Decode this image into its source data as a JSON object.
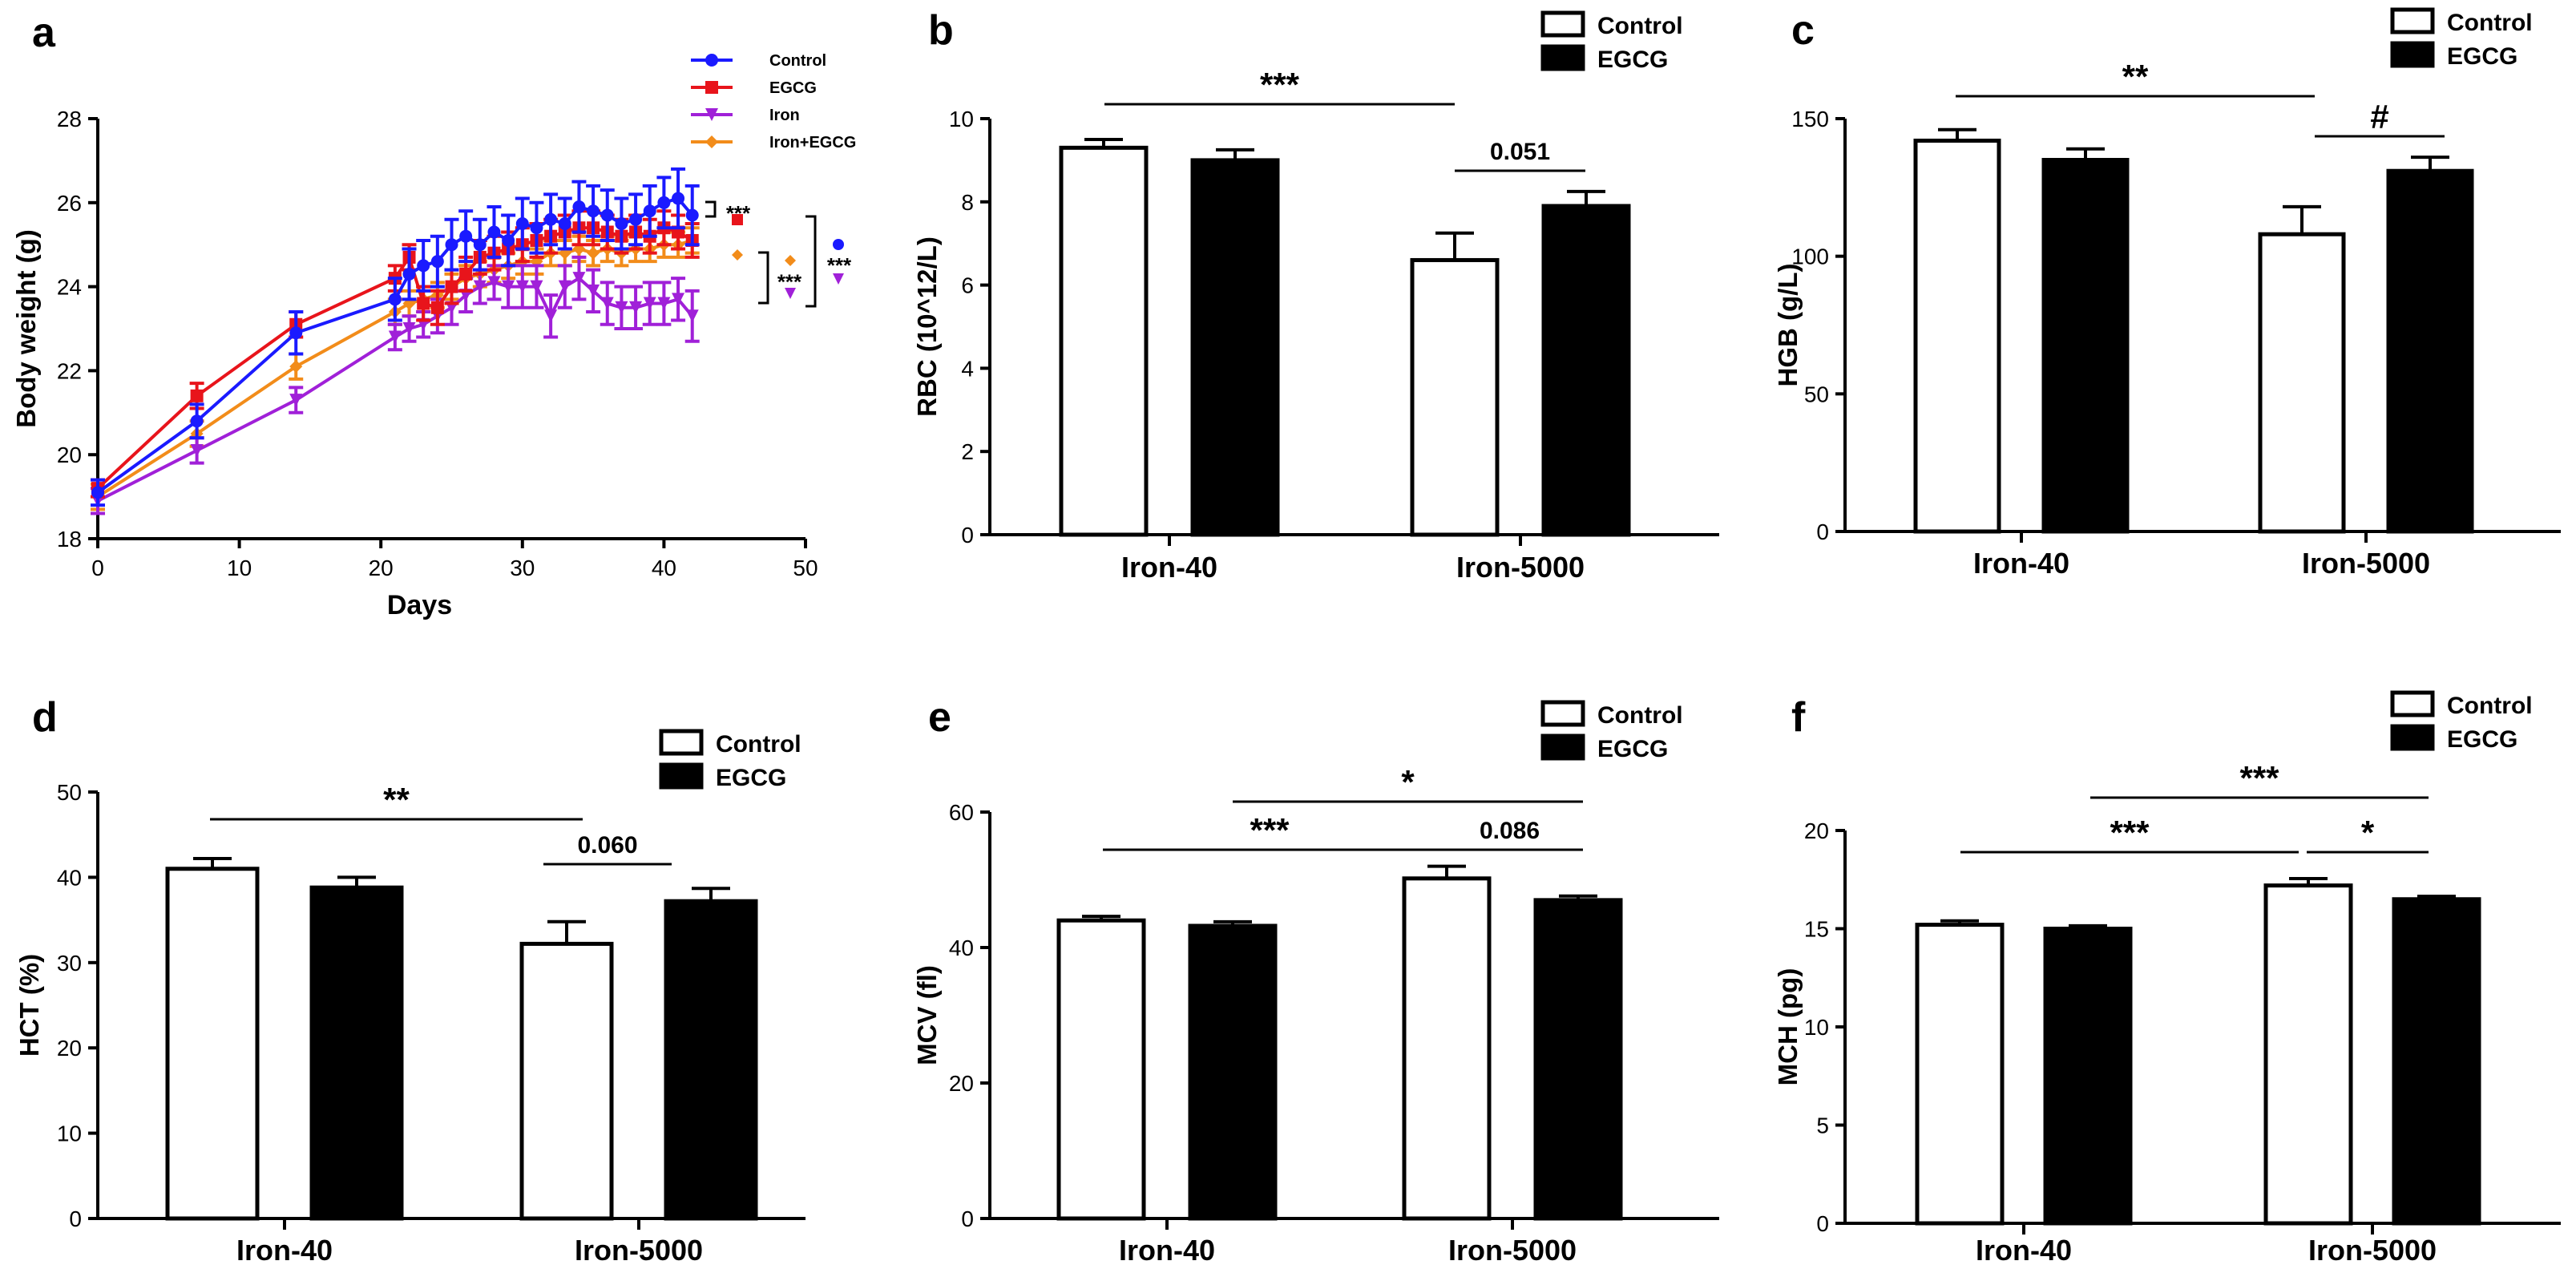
{
  "panels": {
    "a": {
      "letter": "a"
    },
    "b": {
      "letter": "b"
    },
    "c": {
      "letter": "c"
    },
    "d": {
      "letter": "d"
    },
    "e": {
      "letter": "e"
    },
    "f": {
      "letter": "f"
    }
  },
  "chart_data": [
    {
      "id": "a",
      "type": "line",
      "title": "",
      "xlabel": "Days",
      "ylabel": "Body weight (g)",
      "xlim": [
        0,
        50
      ],
      "ylim": [
        18,
        28
      ],
      "xticks": [
        "0",
        "10",
        "20",
        "30",
        "40",
        "50"
      ],
      "yticks": [
        "18",
        "20",
        "22",
        "24",
        "26",
        "28"
      ],
      "legend": [
        "Control",
        "EGCG",
        "Iron",
        "Iron+EGCG"
      ],
      "colors": [
        "#1a1aff",
        "#e8141b",
        "#a020d8",
        "#f28c1a"
      ],
      "markers": [
        "circle",
        "square",
        "triangle-down",
        "diamond"
      ],
      "series": [
        {
          "name": "Control",
          "x": [
            0,
            7,
            14,
            21,
            22,
            23,
            24,
            25,
            26,
            27,
            28,
            29,
            30,
            31,
            32,
            33,
            34,
            35,
            36,
            37,
            38,
            39,
            40,
            41,
            42
          ],
          "y": [
            19.1,
            20.8,
            22.9,
            23.7,
            24.3,
            24.5,
            24.6,
            25.0,
            25.2,
            25.0,
            25.3,
            25.1,
            25.5,
            25.4,
            25.6,
            25.5,
            25.9,
            25.8,
            25.7,
            25.5,
            25.6,
            25.8,
            26.0,
            26.1,
            25.7
          ],
          "err": [
            0.3,
            0.4,
            0.5,
            0.5,
            0.6,
            0.6,
            0.6,
            0.6,
            0.6,
            0.6,
            0.6,
            0.6,
            0.6,
            0.6,
            0.6,
            0.6,
            0.6,
            0.6,
            0.6,
            0.6,
            0.6,
            0.6,
            0.6,
            0.7,
            0.7
          ]
        },
        {
          "name": "EGCG",
          "x": [
            0,
            7,
            14,
            21,
            22,
            23,
            24,
            25,
            26,
            27,
            28,
            29,
            30,
            31,
            32,
            33,
            34,
            35,
            36,
            37,
            38,
            39,
            40,
            41,
            42
          ],
          "y": [
            19.2,
            21.4,
            23.1,
            24.2,
            24.7,
            23.6,
            23.5,
            24.0,
            24.3,
            24.7,
            24.8,
            24.9,
            25.0,
            25.1,
            25.2,
            25.3,
            25.4,
            25.4,
            25.3,
            25.2,
            25.3,
            25.2,
            25.4,
            25.3,
            25.1
          ],
          "err": [
            0.2,
            0.3,
            0.3,
            0.3,
            0.3,
            0.4,
            0.4,
            0.4,
            0.4,
            0.4,
            0.4,
            0.4,
            0.4,
            0.4,
            0.4,
            0.4,
            0.4,
            0.4,
            0.4,
            0.4,
            0.4,
            0.4,
            0.4,
            0.4,
            0.4
          ]
        },
        {
          "name": "Iron",
          "x": [
            0,
            7,
            14,
            21,
            22,
            23,
            24,
            25,
            26,
            27,
            28,
            29,
            30,
            31,
            32,
            33,
            34,
            35,
            36,
            37,
            38,
            39,
            40,
            41,
            42
          ],
          "y": [
            18.9,
            20.1,
            21.3,
            22.8,
            23.0,
            23.1,
            23.3,
            23.5,
            23.8,
            24.0,
            24.1,
            24.0,
            24.0,
            24.0,
            23.3,
            24.0,
            24.2,
            23.9,
            23.6,
            23.5,
            23.5,
            23.6,
            23.6,
            23.7,
            23.3
          ],
          "err": [
            0.3,
            0.3,
            0.3,
            0.3,
            0.3,
            0.3,
            0.4,
            0.4,
            0.4,
            0.4,
            0.4,
            0.5,
            0.5,
            0.5,
            0.5,
            0.5,
            0.5,
            0.5,
            0.5,
            0.5,
            0.5,
            0.5,
            0.5,
            0.5,
            0.6
          ]
        },
        {
          "name": "Iron+EGCG",
          "x": [
            0,
            7,
            14,
            21,
            22,
            23,
            24,
            25,
            26,
            27,
            28,
            29,
            30,
            31,
            32,
            33,
            34,
            35,
            36,
            37,
            38,
            39,
            40,
            41,
            42
          ],
          "y": [
            19.0,
            20.5,
            22.1,
            23.4,
            23.6,
            23.7,
            23.8,
            24.0,
            24.2,
            24.3,
            24.4,
            24.5,
            24.6,
            24.6,
            24.8,
            24.8,
            24.9,
            24.8,
            24.9,
            24.8,
            24.9,
            24.9,
            25.0,
            25.0,
            25.1
          ],
          "err": [
            0.3,
            0.3,
            0.3,
            0.3,
            0.3,
            0.3,
            0.3,
            0.3,
            0.3,
            0.3,
            0.3,
            0.3,
            0.3,
            0.3,
            0.3,
            0.3,
            0.3,
            0.3,
            0.3,
            0.3,
            0.3,
            0.3,
            0.3,
            0.3,
            0.3
          ]
        }
      ],
      "annotations": [
        "***",
        "***",
        "***"
      ]
    },
    {
      "id": "b",
      "type": "bar",
      "title": "",
      "xlabel": "",
      "ylabel": "RBC (10^12/L)",
      "ylim": [
        0,
        10
      ],
      "yticks": [
        "0",
        "2",
        "4",
        "6",
        "8",
        "10"
      ],
      "categories": [
        "Iron-40",
        "Iron-5000"
      ],
      "legend": [
        "Control",
        "EGCG"
      ],
      "series": [
        {
          "name": "Control",
          "values": [
            9.3,
            6.6
          ],
          "err": [
            0.2,
            0.65
          ]
        },
        {
          "name": "EGCG",
          "values": [
            9.0,
            7.9
          ],
          "err": [
            0.25,
            0.35
          ]
        }
      ],
      "significance": [
        {
          "label": "***",
          "from": "Iron-40 Control",
          "to": "Iron-5000 Control"
        },
        {
          "label": "0.051",
          "from": "Iron-5000 Control",
          "to": "Iron-5000 EGCG"
        }
      ]
    },
    {
      "id": "c",
      "type": "bar",
      "title": "",
      "xlabel": "",
      "ylabel": "HGB (g/L)",
      "ylim": [
        0,
        150
      ],
      "yticks": [
        "0",
        "50",
        "100",
        "150"
      ],
      "categories": [
        "Iron-40",
        "Iron-5000"
      ],
      "legend": [
        "Control",
        "EGCG"
      ],
      "series": [
        {
          "name": "Control",
          "values": [
            142,
            108
          ],
          "err": [
            4,
            10
          ]
        },
        {
          "name": "EGCG",
          "values": [
            135,
            131
          ],
          "err": [
            4,
            5
          ]
        }
      ],
      "significance": [
        {
          "label": "**",
          "from": "Iron-40 Control",
          "to": "Iron-5000 Control"
        },
        {
          "label": "#",
          "from": "Iron-5000 Control",
          "to": "Iron-5000 EGCG"
        }
      ]
    },
    {
      "id": "d",
      "type": "bar",
      "title": "",
      "xlabel": "",
      "ylabel": "HCT (%)",
      "ylim": [
        0,
        50
      ],
      "yticks": [
        "0",
        "10",
        "20",
        "30",
        "40",
        "50"
      ],
      "categories": [
        "Iron-40",
        "Iron-5000"
      ],
      "legend": [
        "Control",
        "EGCG"
      ],
      "series": [
        {
          "name": "Control",
          "values": [
            41,
            32.2
          ],
          "err": [
            1.2,
            2.6
          ]
        },
        {
          "name": "EGCG",
          "values": [
            38.8,
            37.2
          ],
          "err": [
            1.2,
            1.5
          ]
        }
      ],
      "significance": [
        {
          "label": "**",
          "from": "Iron-40 Control",
          "to": "Iron-5000 Control"
        },
        {
          "label": "0.060",
          "from": "Iron-5000 Control",
          "to": "Iron-5000 EGCG"
        }
      ]
    },
    {
      "id": "e",
      "type": "bar",
      "title": "",
      "xlabel": "",
      "ylabel": "MCV (fl)",
      "ylim": [
        0,
        60
      ],
      "yticks": [
        "0",
        "20",
        "40",
        "60"
      ],
      "categories": [
        "Iron-40",
        "Iron-5000"
      ],
      "legend": [
        "Control",
        "EGCG"
      ],
      "series": [
        {
          "name": "Control",
          "values": [
            44,
            50.2
          ],
          "err": [
            0.6,
            1.8
          ]
        },
        {
          "name": "EGCG",
          "values": [
            43.2,
            47
          ],
          "err": [
            0.6,
            0.6
          ]
        }
      ],
      "significance": [
        {
          "label": "***",
          "from": "Iron-40 Control",
          "to": "Iron-5000 Control"
        },
        {
          "label": "0.086",
          "from": "Iron-5000 Control",
          "to": "Iron-5000 EGCG"
        },
        {
          "label": "*",
          "from": "Iron-40 EGCG",
          "to": "Iron-5000 EGCG"
        }
      ]
    },
    {
      "id": "f",
      "type": "bar",
      "title": "",
      "xlabel": "",
      "ylabel": "MCH (pg)",
      "ylim": [
        0,
        20
      ],
      "yticks": [
        "0",
        "5",
        "10",
        "15",
        "20"
      ],
      "categories": [
        "Iron-40",
        "Iron-5000"
      ],
      "legend": [
        "Control",
        "EGCG"
      ],
      "series": [
        {
          "name": "Control",
          "values": [
            15.2,
            17.2
          ],
          "err": [
            0.2,
            0.35
          ]
        },
        {
          "name": "EGCG",
          "values": [
            15.0,
            16.5
          ],
          "err": [
            0.15,
            0.15
          ]
        }
      ],
      "significance": [
        {
          "label": "***",
          "from": "Iron-40 Control",
          "to": "Iron-5000 Control"
        },
        {
          "label": "*",
          "from": "Iron-5000 Control",
          "to": "Iron-5000 EGCG"
        },
        {
          "label": "***",
          "from": "Iron-40 EGCG",
          "to": "Iron-5000 EGCG"
        }
      ]
    }
  ]
}
